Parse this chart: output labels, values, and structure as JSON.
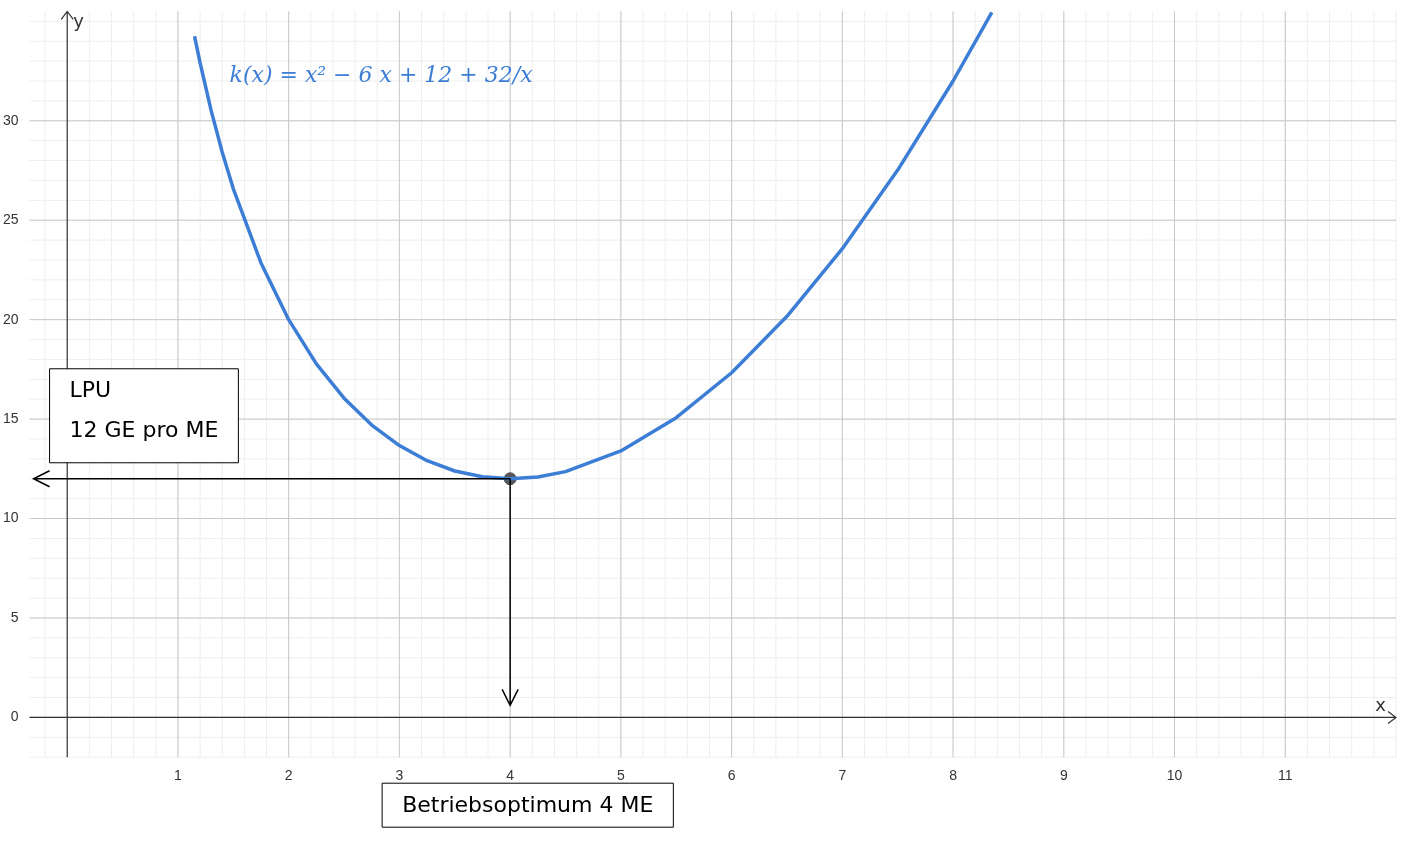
{
  "chart_data": {
    "type": "line",
    "xlabel": "x",
    "ylabel": "y",
    "xlim": [
      -0.34,
      12
    ],
    "ylim": [
      -2,
      35.5
    ],
    "xticks": [
      1,
      2,
      3,
      4,
      5,
      6,
      7,
      8,
      9,
      10,
      11
    ],
    "yticks": [
      0,
      5,
      10,
      15,
      20,
      25,
      30
    ],
    "grid": true,
    "legend": false,
    "marker": "none",
    "line_style": "solid",
    "series": [
      {
        "name": "k(x) = x² − 6 x + 12 + 32/x",
        "color": "#3c7dd6",
        "x": [
          1.15,
          1.2,
          1.3,
          1.4,
          1.5,
          1.75,
          2,
          2.25,
          2.5,
          2.75,
          3,
          3.25,
          3.5,
          3.75,
          4,
          4.25,
          4.5,
          5,
          5.5,
          6,
          6.5,
          7,
          7.5,
          8,
          8.35
        ],
        "values": [
          34.25,
          32.91,
          30.51,
          28.42,
          26.58,
          22.85,
          20,
          17.78,
          16.05,
          14.7,
          13.67,
          12.91,
          12.39,
          12.1,
          12,
          12.09,
          12.36,
          13.4,
          15.07,
          17.33,
          20.17,
          23.57,
          27.52,
          32,
          35.45
        ]
      },
      {
        "type": "scatter",
        "marker": "circle",
        "color": "#555555",
        "x": [
          4
        ],
        "values": [
          12
        ]
      }
    ],
    "annotations": [
      "LPU\n12 GE pro ME",
      "Betriebsoptimum 4 ME"
    ]
  }
}
